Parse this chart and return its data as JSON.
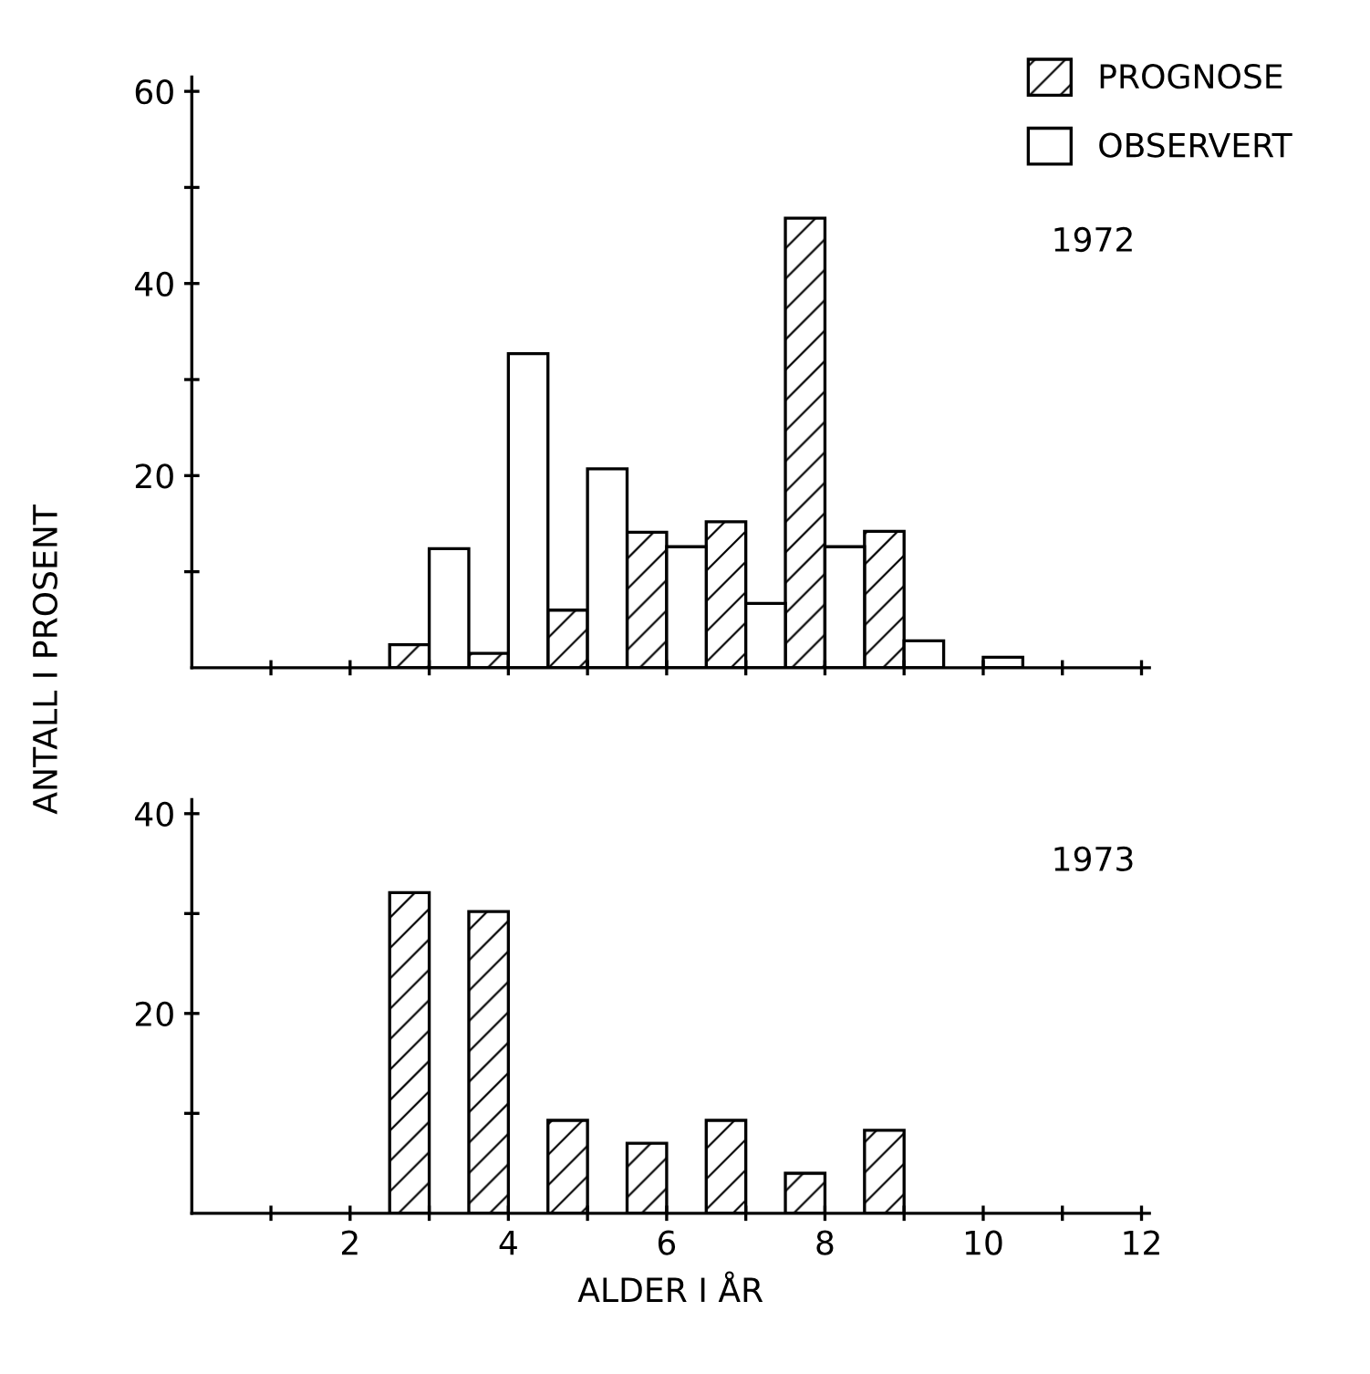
{
  "chart_data": [
    {
      "type": "bar",
      "ylabel": "ANTALL I PROSENT",
      "annotations": [
        "1972"
      ],
      "legend": "top right",
      "series": [
        {
          "name": "PROGNOSE",
          "color": "#000000",
          "x": [
            2.75,
            3.75,
            4.75,
            5.75,
            6.75,
            7.75,
            8.75
          ],
          "values": [
            2.4,
            1.5,
            6.0,
            14.1,
            15.2,
            46.8,
            14.2
          ]
        },
        {
          "name": "OBSERVERT",
          "color": "#ffffff",
          "x": [
            3.25,
            4.25,
            5.25,
            6.25,
            7.25,
            8.25,
            9.25,
            10.25
          ],
          "values": [
            12.4,
            32.7,
            20.7,
            12.6,
            6.7,
            12.6,
            2.8,
            1.1
          ]
        }
      ],
      "xlim": [
        0,
        12.1
      ],
      "ylim": [
        0,
        61.5
      ],
      "xticks": [
        {
          "value": 1,
          "label": null
        },
        {
          "value": 2,
          "label": null
        },
        {
          "value": 3,
          "label": null
        },
        {
          "value": 4,
          "label": null
        },
        {
          "value": 5,
          "label": null
        },
        {
          "value": 6,
          "label": null
        },
        {
          "value": 7,
          "label": null
        },
        {
          "value": 8,
          "label": null
        },
        {
          "value": 9,
          "label": null
        },
        {
          "value": 10,
          "label": null
        },
        {
          "value": 11,
          "label": null
        },
        {
          "value": 12,
          "label": null
        }
      ],
      "yticks": [
        {
          "value": 10,
          "label": null
        },
        20,
        {
          "value": 30,
          "label": null
        },
        40,
        {
          "value": 50,
          "label": null
        },
        60
      ],
      "tick_labels": "y"
    },
    {
      "type": "bar",
      "xlabel": "ALDER I ÅR",
      "annotations": [
        "1973"
      ],
      "series": [
        {
          "color": "#000000",
          "x": [
            2.75,
            3.75,
            4.75,
            5.75,
            6.75,
            7.75,
            8.75
          ],
          "values": [
            32.1,
            30.2,
            9.3,
            7.0,
            9.3,
            4.0,
            8.3
          ]
        }
      ],
      "xlim": [
        0,
        12.1
      ],
      "ylim": [
        0,
        41.4
      ],
      "xticks": [
        {
          "value": 1,
          "label": null
        },
        2,
        {
          "value": 3,
          "label": null
        },
        4,
        {
          "value": 5,
          "label": null
        },
        6,
        {
          "value": 7,
          "label": null
        },
        8,
        {
          "value": 9,
          "label": null
        },
        10,
        {
          "value": 11,
          "label": null
        },
        12
      ],
      "yticks": [
        {
          "value": 10,
          "label": null
        },
        20,
        {
          "value": 30,
          "label": null
        },
        40
      ]
    }
  ]
}
